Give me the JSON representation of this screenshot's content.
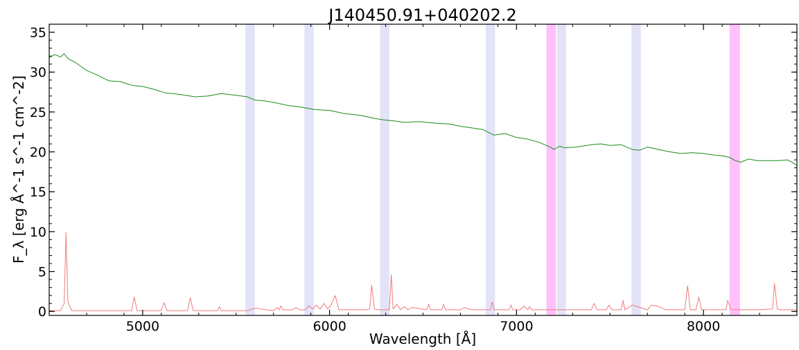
{
  "chart_data": {
    "type": "line",
    "title": "J140450.91+040202.2",
    "xlabel": "Wavelength [Å]",
    "ylabel": "F_λ [erg Å^-1 s^-1 cm^-2]",
    "xlim": [
      4500,
      8500
    ],
    "ylim": [
      -0.5,
      36
    ],
    "xticks": [
      5000,
      6000,
      7000,
      8000
    ],
    "yticks": [
      0,
      5,
      10,
      15,
      20,
      25,
      30,
      35
    ],
    "grid": false,
    "bands": [
      {
        "x0": 5550,
        "x1": 5600,
        "color": "#e3e3f8"
      },
      {
        "x0": 5865,
        "x1": 5915,
        "color": "#e3e3f8"
      },
      {
        "x0": 6270,
        "x1": 6320,
        "color": "#e3e3f8"
      },
      {
        "x0": 6835,
        "x1": 6885,
        "color": "#e3e3f8"
      },
      {
        "x0": 7160,
        "x1": 7210,
        "color": "#ffc0fb"
      },
      {
        "x0": 7215,
        "x1": 7265,
        "color": "#e3e3f8"
      },
      {
        "x0": 7615,
        "x1": 7665,
        "color": "#e3e3f8"
      },
      {
        "x0": 8140,
        "x1": 8195,
        "color": "#ffc0fb"
      }
    ],
    "series": [
      {
        "color": "#1a8a1a",
        "x": [
          4500,
          4530,
          4560,
          4580,
          4600,
          4640,
          4700,
          4760,
          4820,
          4880,
          4950,
          5000,
          5050,
          5120,
          5200,
          5280,
          5350,
          5420,
          5500,
          5560,
          5600,
          5650,
          5700,
          5780,
          5850,
          5920,
          6000,
          6080,
          6160,
          6240,
          6290,
          6340,
          6400,
          6480,
          6560,
          6640,
          6700,
          6760,
          6820,
          6880,
          6940,
          7000,
          7060,
          7120,
          7180,
          7200,
          7230,
          7260,
          7320,
          7400,
          7450,
          7500,
          7560,
          7620,
          7660,
          7700,
          7760,
          7820,
          7880,
          7940,
          8000,
          8060,
          8100,
          8140,
          8170,
          8200,
          8240,
          8290,
          8340,
          8400,
          8450,
          8480,
          8500
        ],
        "y": [
          31.8,
          32.2,
          31.9,
          32.3,
          31.7,
          31.2,
          30.2,
          29.6,
          28.9,
          28.8,
          28.3,
          28.2,
          27.9,
          27.4,
          27.2,
          26.9,
          27.0,
          27.3,
          27.1,
          26.9,
          26.5,
          26.4,
          26.2,
          25.8,
          25.6,
          25.3,
          25.2,
          24.8,
          24.6,
          24.2,
          24.0,
          23.9,
          23.7,
          23.8,
          23.6,
          23.5,
          23.2,
          23.0,
          22.8,
          22.1,
          22.3,
          21.8,
          21.6,
          21.2,
          20.6,
          20.3,
          20.7,
          20.5,
          20.6,
          20.9,
          21.0,
          20.8,
          20.9,
          20.3,
          20.2,
          20.6,
          20.3,
          20.0,
          19.8,
          19.9,
          19.8,
          19.6,
          19.5,
          19.3,
          18.9,
          18.7,
          19.1,
          18.9,
          18.9,
          18.9,
          19.0,
          18.6,
          18.3
        ]
      },
      {
        "color": "#f07a7a",
        "x": [
          4500,
          4560,
          4580,
          4590,
          4600,
          4620,
          4700,
          4800,
          4940,
          4955,
          4970,
          5100,
          5115,
          5130,
          5240,
          5255,
          5270,
          5400,
          5410,
          5420,
          5560,
          5600,
          5700,
          5720,
          5730,
          5740,
          5750,
          5800,
          5820,
          5840,
          5870,
          5890,
          5910,
          5930,
          5950,
          5970,
          5990,
          6010,
          6030,
          6050,
          6100,
          6200,
          6215,
          6225,
          6240,
          6260,
          6320,
          6330,
          6340,
          6360,
          6380,
          6400,
          6420,
          6440,
          6520,
          6530,
          6540,
          6600,
          6610,
          6620,
          6700,
          6720,
          6760,
          6860,
          6870,
          6880,
          6960,
          6970,
          6980,
          7020,
          7040,
          7060,
          7070,
          7080,
          7200,
          7300,
          7400,
          7415,
          7430,
          7480,
          7495,
          7510,
          7560,
          7570,
          7580,
          7620,
          7700,
          7720,
          7760,
          7800,
          7900,
          7915,
          7930,
          7960,
          7975,
          7990,
          8050,
          8120,
          8130,
          8145,
          8160,
          8200,
          8300,
          8370,
          8380,
          8395,
          8410,
          8450,
          8500
        ],
        "y": [
          0.1,
          0.1,
          1.0,
          9.9,
          1.2,
          0.1,
          0.1,
          0.1,
          0.1,
          1.8,
          0.1,
          0.1,
          1.1,
          0.1,
          0.1,
          1.7,
          0.1,
          0.1,
          0.6,
          0.1,
          0.1,
          0.4,
          0.1,
          0.5,
          0.2,
          0.7,
          0.2,
          0.2,
          0.5,
          0.2,
          0.2,
          0.7,
          0.3,
          0.8,
          0.3,
          1.0,
          0.3,
          0.9,
          2.0,
          0.2,
          0.2,
          0.2,
          0.3,
          3.3,
          0.3,
          0.2,
          0.2,
          4.6,
          0.3,
          0.9,
          0.2,
          0.6,
          0.2,
          0.5,
          0.2,
          0.9,
          0.2,
          0.2,
          0.9,
          0.2,
          0.2,
          0.5,
          0.2,
          0.2,
          1.2,
          0.2,
          0.2,
          0.8,
          0.2,
          0.2,
          0.7,
          0.2,
          0.6,
          0.2,
          0.2,
          0.2,
          0.2,
          1.0,
          0.2,
          0.2,
          0.8,
          0.2,
          0.2,
          1.4,
          0.2,
          0.8,
          0.2,
          0.8,
          0.6,
          0.2,
          0.2,
          3.2,
          0.2,
          0.2,
          1.8,
          0.2,
          0.2,
          0.2,
          1.4,
          0.3,
          0.2,
          0.2,
          0.2,
          0.3,
          3.5,
          0.3,
          0.2,
          0.2,
          0.2
        ]
      }
    ]
  }
}
